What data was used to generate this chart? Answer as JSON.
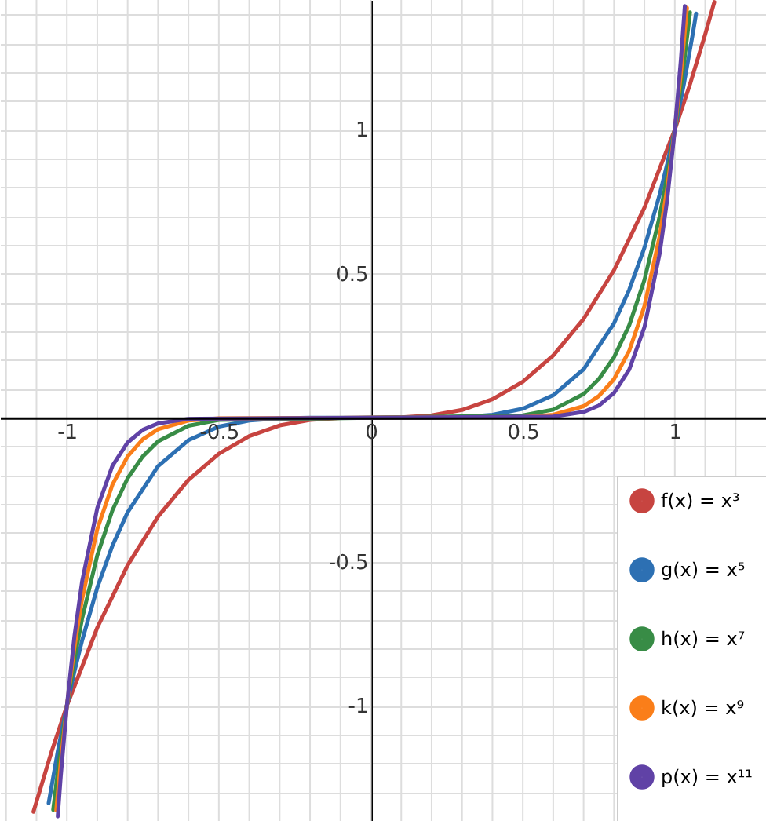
{
  "chart_data": {
    "type": "line",
    "xlim": [
      -1.22,
      1.3
    ],
    "ylim": [
      -1.4,
      1.45
    ],
    "xticks": [
      {
        "value": -1.2,
        "label": null
      },
      {
        "value": -1.1,
        "label": null
      },
      -1,
      {
        "value": -0.9,
        "label": null
      },
      {
        "value": -0.8,
        "label": null
      },
      {
        "value": -0.7,
        "label": null
      },
      {
        "value": -0.6,
        "label": null
      },
      -0.5,
      {
        "value": -0.4,
        "label": null
      },
      {
        "value": -0.3,
        "label": null
      },
      {
        "value": -0.2,
        "label": null
      },
      {
        "value": -0.1,
        "label": null
      },
      0,
      {
        "value": 0.1,
        "label": null
      },
      {
        "value": 0.2,
        "label": null
      },
      {
        "value": 0.3,
        "label": null
      },
      {
        "value": 0.4,
        "label": null
      },
      0.5,
      {
        "value": 0.6,
        "label": null
      },
      {
        "value": 0.7,
        "label": null
      },
      {
        "value": 0.8,
        "label": null
      },
      {
        "value": 0.9,
        "label": null
      },
      1,
      {
        "value": 1.1,
        "label": null
      },
      {
        "value": 1.2,
        "label": null
      }
    ],
    "yticks": [
      {
        "value": -1.3,
        "label": null
      },
      {
        "value": -1.2,
        "label": null
      },
      {
        "value": -1.1,
        "label": null
      },
      -1,
      {
        "value": -0.9,
        "label": null
      },
      {
        "value": -0.8,
        "label": null
      },
      {
        "value": -0.7,
        "label": null
      },
      {
        "value": -0.6,
        "label": null
      },
      -0.5,
      {
        "value": -0.4,
        "label": null
      },
      {
        "value": -0.3,
        "label": null
      },
      {
        "value": -0.2,
        "label": null
      },
      {
        "value": -0.1,
        "label": null
      },
      {
        "value": 0,
        "label": null
      },
      {
        "value": 0.1,
        "label": null
      },
      {
        "value": 0.2,
        "label": null
      },
      {
        "value": 0.3,
        "label": null
      },
      {
        "value": 0.4,
        "label": null
      },
      0.5,
      {
        "value": 0.6,
        "label": null
      },
      {
        "value": 0.7,
        "label": null
      },
      {
        "value": 0.8,
        "label": null
      },
      {
        "value": 0.9,
        "label": null
      },
      1,
      {
        "value": 1.1,
        "label": null
      },
      {
        "value": 1.2,
        "label": null
      },
      {
        "value": 1.3,
        "label": null
      },
      {
        "value": 1.4,
        "label": null
      }
    ],
    "grid": true,
    "legend": "bottom right",
    "marker": "none",
    "line_style": "solid",
    "series": [
      {
        "name": "f(x) = x³",
        "color": "#c74440",
        "x": [
          -1.11,
          -1.05,
          -1,
          -0.9,
          -0.8,
          -0.7,
          -0.6,
          -0.5,
          -0.4,
          -0.3,
          -0.2,
          -0.1,
          0,
          0.1,
          0.2,
          0.3,
          0.4,
          0.5,
          0.6,
          0.7,
          0.8,
          0.9,
          1,
          1.05,
          1.1,
          1.13
        ],
        "values": [
          -1.368,
          -1.158,
          -1,
          -0.729,
          -0.512,
          -0.343,
          -0.216,
          -0.125,
          -0.064,
          -0.027,
          -0.008,
          -0.001,
          0,
          0.001,
          0.008,
          0.027,
          0.064,
          0.125,
          0.216,
          0.343,
          0.512,
          0.729,
          1,
          1.158,
          1.331,
          1.443
        ]
      },
      {
        "name": "g(x) = x⁵",
        "color": "#2d70b3",
        "x": [
          -1.06,
          -1.03,
          -1,
          -0.975,
          -0.95,
          -0.9,
          -0.85,
          -0.8,
          -0.7,
          -0.6,
          -0.5,
          -0.4,
          -0.3,
          -0.2,
          0,
          0.2,
          0.3,
          0.4,
          0.5,
          0.6,
          0.7,
          0.8,
          0.85,
          0.9,
          0.95,
          0.975,
          1,
          1.03,
          1.06,
          1.07
        ],
        "values": [
          -1.338,
          -1.159,
          -1,
          -0.881,
          -0.774,
          -0.59,
          -0.444,
          -0.328,
          -0.168,
          -0.078,
          -0.031,
          -0.01,
          -0.002,
          0,
          0,
          0,
          0.002,
          0.01,
          0.031,
          0.078,
          0.168,
          0.328,
          0.444,
          0.59,
          0.774,
          0.881,
          1,
          1.159,
          1.338,
          1.403
        ]
      },
      {
        "name": "h(x) = x⁷",
        "color": "#388c46",
        "x": [
          -1.045,
          -1.03,
          -1,
          -0.975,
          -0.95,
          -0.9,
          -0.85,
          -0.8,
          -0.75,
          -0.7,
          -0.6,
          -0.5,
          0,
          0.5,
          0.6,
          0.7,
          0.75,
          0.8,
          0.85,
          0.9,
          0.95,
          0.975,
          1,
          1.03,
          1.05
        ],
        "values": [
          -1.361,
          -1.23,
          -1,
          -0.838,
          -0.698,
          -0.478,
          -0.321,
          -0.21,
          -0.134,
          -0.082,
          -0.028,
          -0.008,
          0,
          0.008,
          0.028,
          0.082,
          0.134,
          0.21,
          0.321,
          0.478,
          0.698,
          0.838,
          1,
          1.23,
          1.407
        ]
      },
      {
        "name": "k(x) = x⁹",
        "color": "#fa7e19",
        "x": [
          -1.035,
          -1.02,
          -1,
          -0.975,
          -0.95,
          -0.9,
          -0.85,
          -0.8,
          -0.75,
          -0.7,
          -0.6,
          -0.5,
          0,
          0.5,
          0.6,
          0.7,
          0.75,
          0.8,
          0.85,
          0.9,
          0.95,
          0.975,
          1,
          1.02,
          1.04
        ],
        "values": [
          -1.363,
          -1.195,
          -1,
          -0.796,
          -0.63,
          -0.387,
          -0.232,
          -0.134,
          -0.075,
          -0.04,
          -0.01,
          -0.002,
          0,
          0.002,
          0.01,
          0.04,
          0.075,
          0.134,
          0.232,
          0.387,
          0.63,
          0.796,
          1,
          1.195,
          1.423
        ]
      },
      {
        "name": "p(x) = x¹¹",
        "color": "#6042a6",
        "x": [
          -1.03,
          -1.02,
          -1,
          -0.975,
          -0.95,
          -0.9,
          -0.85,
          -0.8,
          -0.75,
          -0.7,
          -0.6,
          0,
          0.6,
          0.7,
          0.75,
          0.8,
          0.85,
          0.9,
          0.95,
          0.975,
          1,
          1.02,
          1.033
        ],
        "values": [
          -1.384,
          -1.243,
          -1,
          -0.757,
          -0.569,
          -0.314,
          -0.167,
          -0.086,
          -0.042,
          -0.02,
          -0.004,
          0,
          0.004,
          0.02,
          0.042,
          0.086,
          0.167,
          0.314,
          0.569,
          0.757,
          1,
          1.243,
          1.429
        ]
      }
    ]
  }
}
